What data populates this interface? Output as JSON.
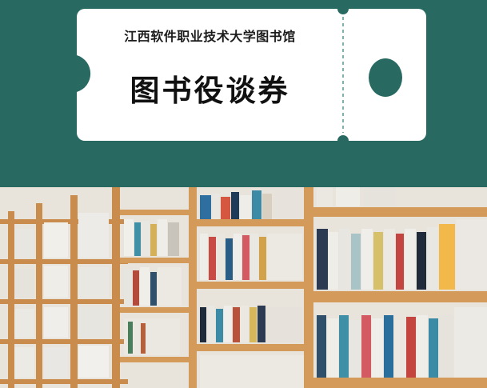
{
  "ticket": {
    "library_name": "江西软件职业技术大学图书馆",
    "title": "图书役谈券"
  },
  "colors": {
    "background": "#286a62",
    "ticket": "#ffffff",
    "stub_hole": "#286a62",
    "shelf_wood": "#d49a5a"
  },
  "photo": {
    "subject": "library-bookshelves"
  }
}
